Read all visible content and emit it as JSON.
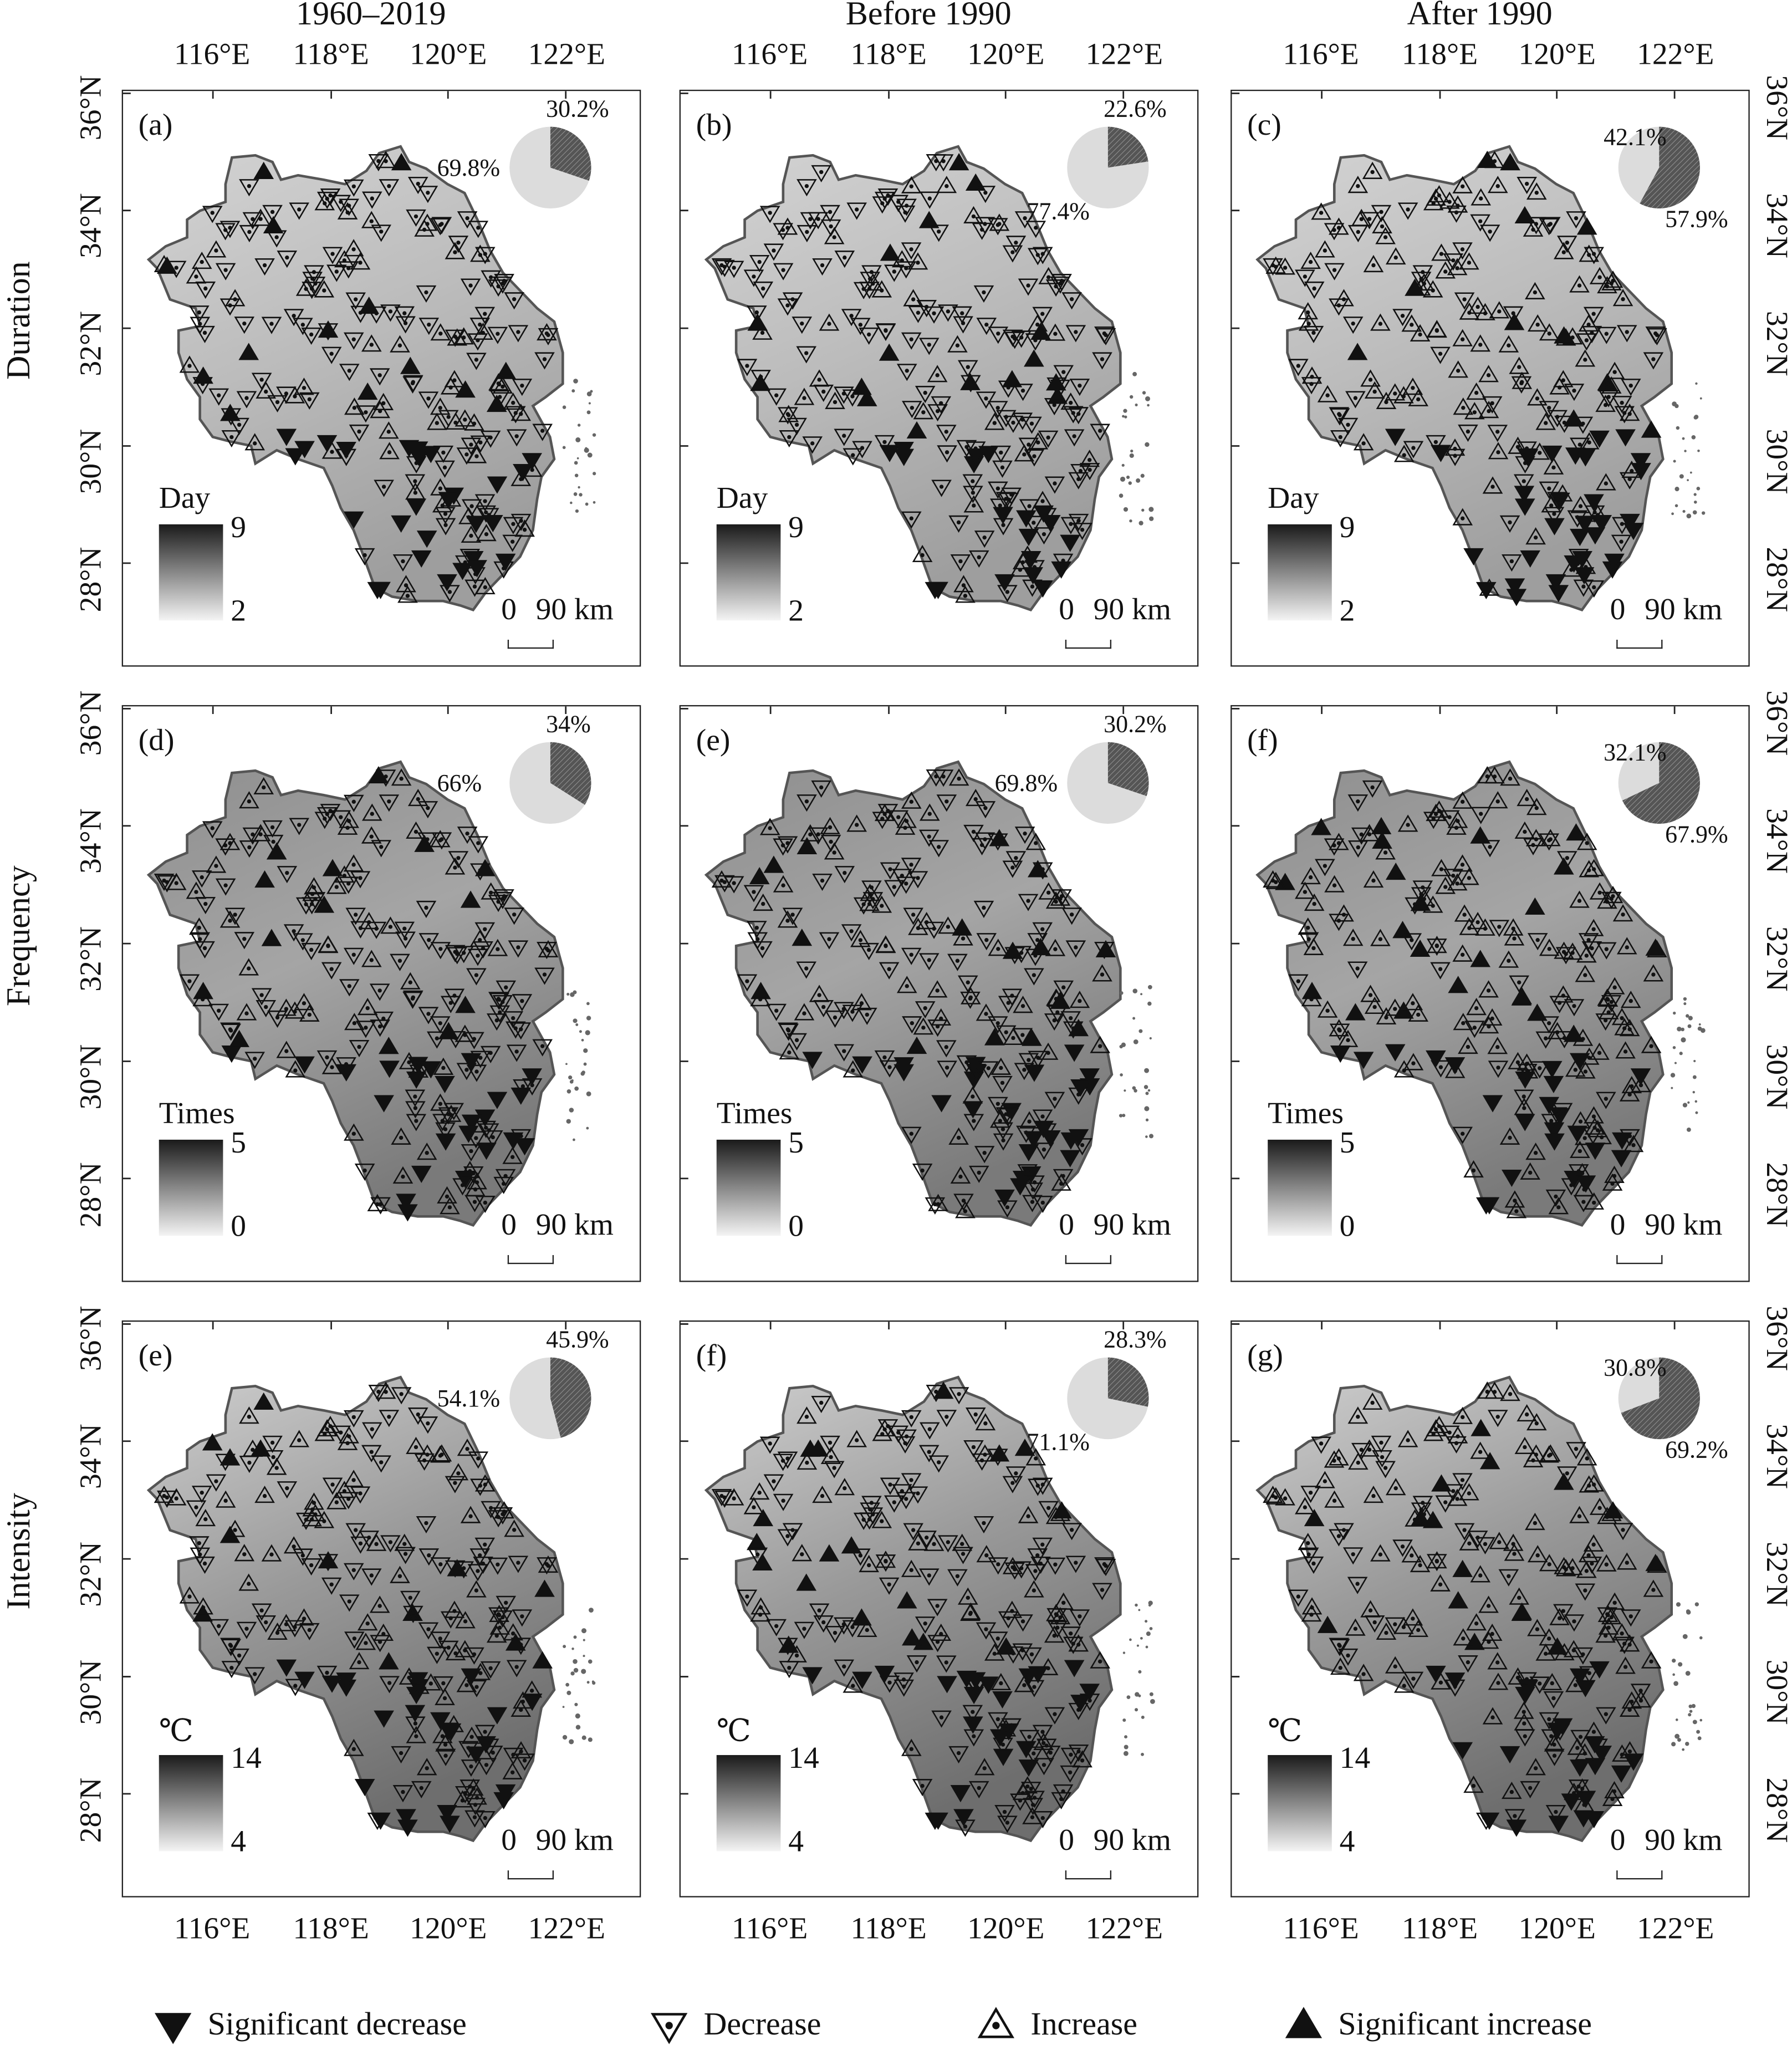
{
  "column_titles": [
    "1960–2019",
    "Before 1990",
    "After 1990"
  ],
  "row_labels": [
    "Duration",
    "Frequency",
    "Intensity"
  ],
  "lon_ticks": [
    "116°E",
    "118°E",
    "120°E",
    "122°E"
  ],
  "lat_ticks": [
    "36°N",
    "34°N",
    "32°N",
    "30°N",
    "28°N"
  ],
  "scale_bar": {
    "zero": "0",
    "label": "90 km"
  },
  "colors": {
    "map_dark": "#1a1a1a",
    "map_light": "#f4f4f4",
    "pie_light": "#dcdcdc",
    "pie_dark": "#555555",
    "outline": "#555555"
  },
  "rows": [
    {
      "unit": "Day",
      "max": "9",
      "min": "2",
      "panels": [
        {
          "label": "(a)",
          "dark_pct": 30.2,
          "light_pct": 69.8,
          "dark_text": "30.2%",
          "light_text": "69.8%"
        },
        {
          "label": "(b)",
          "dark_pct": 22.6,
          "light_pct": 77.4,
          "dark_text": "22.6%",
          "light_text": "77.4%"
        },
        {
          "label": "(c)",
          "dark_pct": 57.9,
          "light_pct": 42.1,
          "dark_text": "57.9%",
          "light_text": "42.1%"
        }
      ]
    },
    {
      "unit": "Times",
      "max": "5",
      "min": "0",
      "panels": [
        {
          "label": "(d)",
          "dark_pct": 34,
          "light_pct": 66,
          "dark_text": "34%",
          "light_text": "66%"
        },
        {
          "label": "(e)",
          "dark_pct": 30.2,
          "light_pct": 69.8,
          "dark_text": "30.2%",
          "light_text": "69.8%"
        },
        {
          "label": "(f)",
          "dark_pct": 67.9,
          "light_pct": 32.1,
          "dark_text": "67.9%",
          "light_text": "32.1%"
        }
      ]
    },
    {
      "unit": "℃",
      "max": "14",
      "min": "4",
      "panels": [
        {
          "label": "(e)",
          "dark_pct": 45.9,
          "light_pct": 54.1,
          "dark_text": "45.9%",
          "light_text": "54.1%"
        },
        {
          "label": "(f)",
          "dark_pct": 28.3,
          "light_pct": 71.1,
          "dark_text": "28.3%",
          "light_text": "71.1%"
        },
        {
          "label": "(g)",
          "dark_pct": 69.2,
          "light_pct": 30.8,
          "dark_text": "69.2%",
          "light_text": "30.8%"
        }
      ]
    }
  ],
  "legend": [
    {
      "icon": "filled-down-triangle",
      "label": "Significant decrease"
    },
    {
      "icon": "hollow-down-triangle-dot",
      "label": "Decrease"
    },
    {
      "icon": "hollow-up-triangle-dot",
      "label": "Increase"
    },
    {
      "icon": "filled-up-triangle",
      "label": "Significant increase"
    }
  ]
}
